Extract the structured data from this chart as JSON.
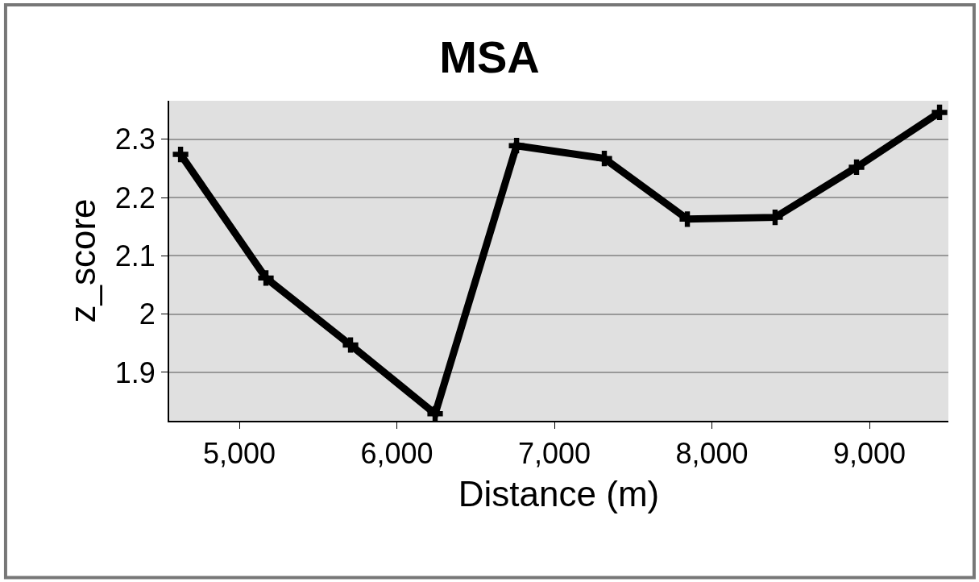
{
  "chart_data": {
    "type": "line",
    "title": "MSA",
    "xlabel": "Distance (m)",
    "ylabel": "z_score",
    "x": [
      4627,
      5169,
      5706,
      6243,
      6760,
      7317,
      7844,
      8401,
      8918,
      9445
    ],
    "series": [
      {
        "color": "#000000",
        "values": [
          2.274,
          2.062,
          1.947,
          1.829,
          2.289,
          2.267,
          2.163,
          2.166,
          2.252,
          2.346
        ]
      }
    ],
    "xlim": [
      4555,
      9501
    ],
    "xticks": [
      {
        "value": 5000,
        "label": "5,000"
      },
      {
        "value": 6000,
        "label": "6,000"
      },
      {
        "value": 7000,
        "label": "7,000"
      },
      {
        "value": 8000,
        "label": "8,000"
      },
      {
        "value": 9000,
        "label": "9,000"
      }
    ],
    "ylim": [
      1.817,
      2.366
    ],
    "yticks": [
      1.9,
      2,
      2.1,
      2.2,
      2.3
    ],
    "grid": "y",
    "marker": "cross",
    "line_style": "solid"
  }
}
